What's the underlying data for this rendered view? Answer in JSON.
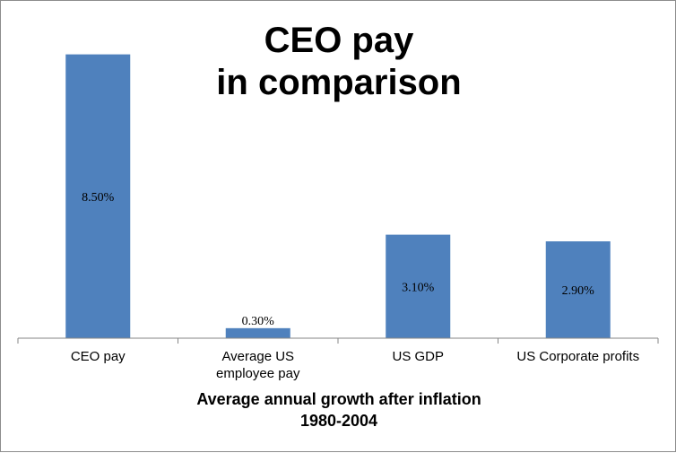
{
  "chart_data": {
    "type": "bar",
    "title_lines": [
      "CEO pay",
      "in comparison"
    ],
    "categories": [
      [
        "CEO pay"
      ],
      [
        "Average US",
        "employee pay"
      ],
      [
        "US GDP"
      ],
      [
        "US Corporate profits"
      ]
    ],
    "values": [
      8.5,
      0.3,
      3.1,
      2.9
    ],
    "data_labels": [
      "8.50%",
      "0.30%",
      "3.10%",
      "2.90%"
    ],
    "xlabel_lines": [
      "Average annual growth after inflation",
      "1980-2004"
    ],
    "ylabel": "",
    "ylim": [
      0,
      9
    ],
    "grid": false,
    "legend": "none",
    "bar_color": "#4f81bd",
    "axis_color": "#868686"
  }
}
